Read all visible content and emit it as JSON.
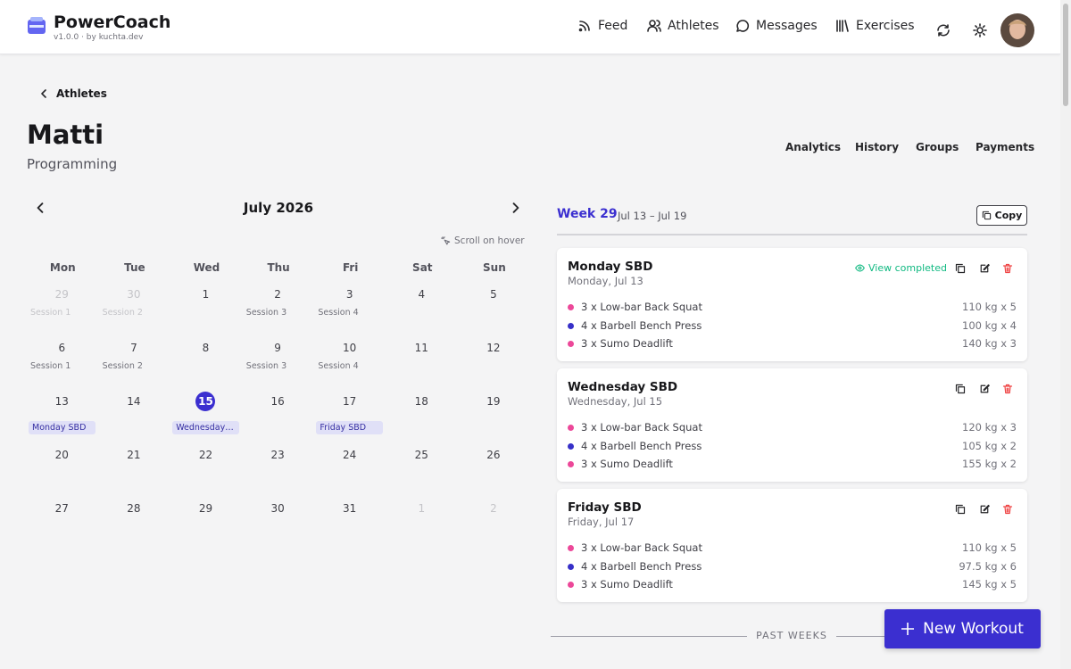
{
  "header": {
    "app_name": "PowerCoach",
    "version": "v1.0.0 · by kuchta.dev",
    "nav": [
      "Feed",
      "Athletes",
      "Messages",
      "Exercises"
    ]
  },
  "breadcrumb": "Athletes",
  "athlete": {
    "name": "Matti",
    "subtitle": "Programming"
  },
  "tabs": [
    "Analytics",
    "History",
    "Groups",
    "Payments"
  ],
  "calendar": {
    "month": "July 2026",
    "hint": "Scroll on hover",
    "weekdays": [
      "Mon",
      "Tue",
      "Wed",
      "Thu",
      "Fri",
      "Sat",
      "Sun"
    ],
    "days": [
      {
        "day": 29,
        "muted": true,
        "session": "Session 1"
      },
      {
        "day": 30,
        "muted": true,
        "session": "Session 2"
      },
      {
        "day": 1
      },
      {
        "day": 2,
        "session": "Session 3"
      },
      {
        "day": 3,
        "session": "Session 4"
      },
      {
        "day": 4
      },
      {
        "day": 5
      },
      {
        "day": 6,
        "session": "Session 1"
      },
      {
        "day": 7,
        "session": "Session 2"
      },
      {
        "day": 8
      },
      {
        "day": 9,
        "session": "Session 3"
      },
      {
        "day": 10,
        "session": "Session 4"
      },
      {
        "day": 11
      },
      {
        "day": 12
      },
      {
        "day": 13,
        "workout": "Monday SBD"
      },
      {
        "day": 14
      },
      {
        "day": 15,
        "today": true,
        "workout": "Wednesday SBD"
      },
      {
        "day": 16
      },
      {
        "day": 17,
        "workout": "Friday SBD"
      },
      {
        "day": 18
      },
      {
        "day": 19
      },
      {
        "day": 20
      },
      {
        "day": 21
      },
      {
        "day": 22
      },
      {
        "day": 23
      },
      {
        "day": 24
      },
      {
        "day": 25
      },
      {
        "day": 26
      },
      {
        "day": 27
      },
      {
        "day": 28
      },
      {
        "day": 29
      },
      {
        "day": 30
      },
      {
        "day": 31
      },
      {
        "day": 1,
        "muted": true
      },
      {
        "day": 2,
        "muted": true
      }
    ]
  },
  "week": {
    "title": "Week 29",
    "range": "Jul 13 – Jul 19",
    "copy": "Copy",
    "workouts": [
      {
        "title": "Monday SBD",
        "date": "Monday, Jul 13",
        "status": "View completed",
        "exercises": [
          {
            "name": "3 x Low-bar Back Squat",
            "load": "110 kg x 5",
            "color": "#ec4899"
          },
          {
            "name": "4 x Barbell Bench Press",
            "load": "100 kg x 4",
            "color": "#3730c8"
          },
          {
            "name": "3 x Sumo Deadlift",
            "load": "140 kg x 3",
            "color": "#ec4899"
          }
        ]
      },
      {
        "title": "Wednesday SBD",
        "date": "Wednesday, Jul 15",
        "exercises": [
          {
            "name": "3 x Low-bar Back Squat",
            "load": "120 kg x 3",
            "color": "#ec4899"
          },
          {
            "name": "4 x Barbell Bench Press",
            "load": "105 kg x 2",
            "color": "#3730c8"
          },
          {
            "name": "3 x Sumo Deadlift",
            "load": "155 kg x 2",
            "color": "#ec4899"
          }
        ]
      },
      {
        "title": "Friday SBD",
        "date": "Friday, Jul 17",
        "exercises": [
          {
            "name": "3 x Low-bar Back Squat",
            "load": "110 kg x 5",
            "color": "#ec4899"
          },
          {
            "name": "4 x Barbell Bench Press",
            "load": "97.5 kg x 6",
            "color": "#3730c8"
          },
          {
            "name": "3 x Sumo Deadlift",
            "load": "145 kg x 5",
            "color": "#ec4899"
          }
        ]
      }
    ]
  },
  "past_weeks": "PAST WEEKS",
  "new_workout": "New Workout"
}
